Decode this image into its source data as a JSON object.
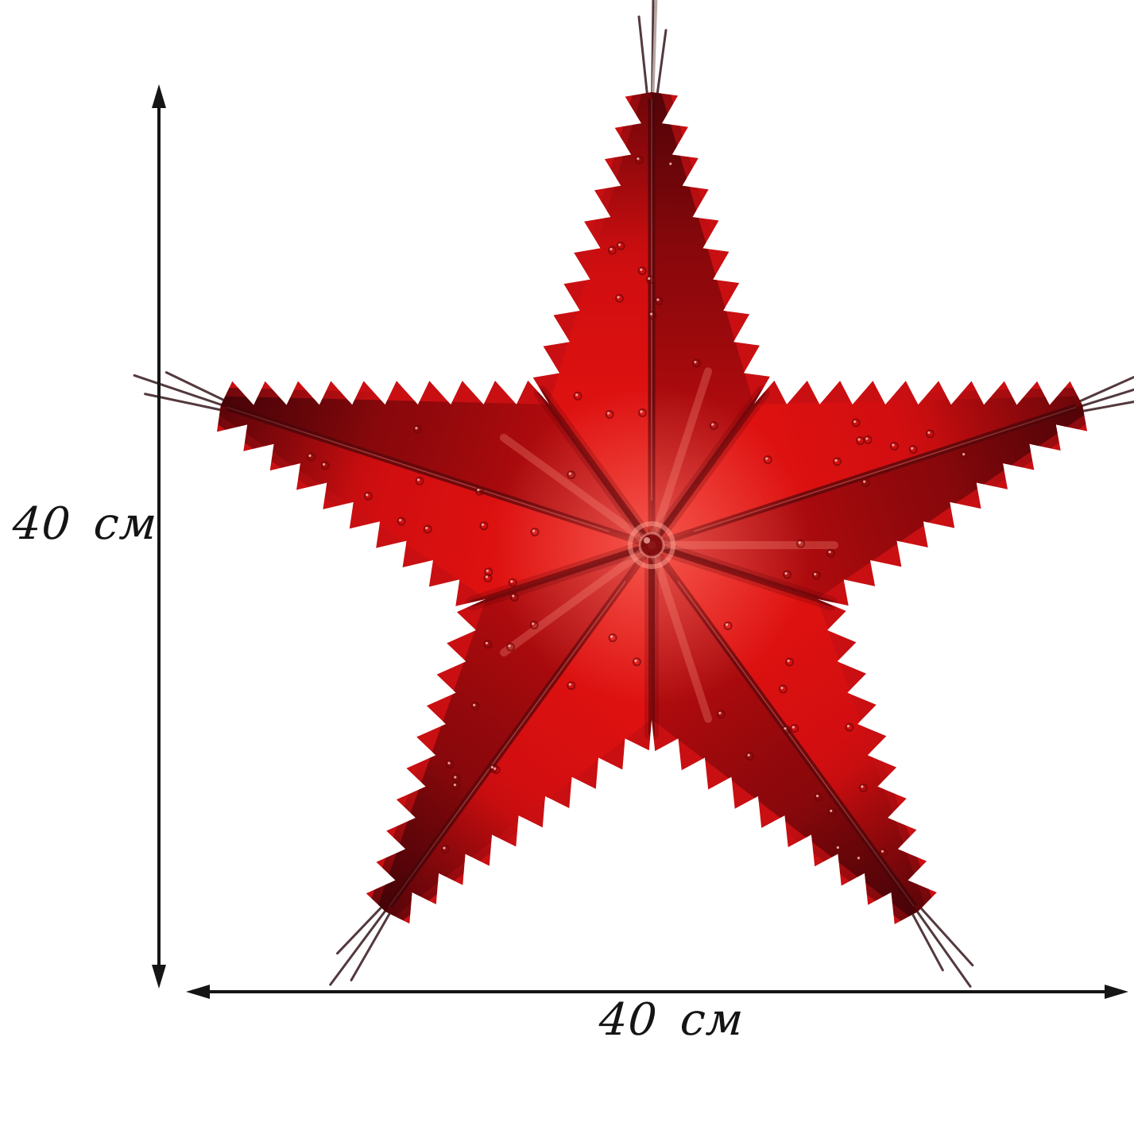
{
  "canvas": {
    "background": "#ffffff"
  },
  "figure": {
    "subject": "red-foil-star-ornament",
    "star_points": 5
  },
  "dimensions": {
    "height": {
      "label": "40 см"
    },
    "width": {
      "label": "40 см"
    }
  },
  "palette": {
    "background": "#ffffff",
    "annotation": "#151515",
    "label": "#141414",
    "star_base": "#c90f12",
    "star_bright": "#ea1511",
    "star_mid": "#d20e10",
    "star_dark": "#8e080b",
    "star_deep": "#5a0408",
    "star_shadow": "#2e0207",
    "star_seam": "#5c070b",
    "star_highlight": "#ff9a8a",
    "spike": "#45292d",
    "spike_light": "#b4a49f",
    "center_ring": "#ff9a8c"
  }
}
